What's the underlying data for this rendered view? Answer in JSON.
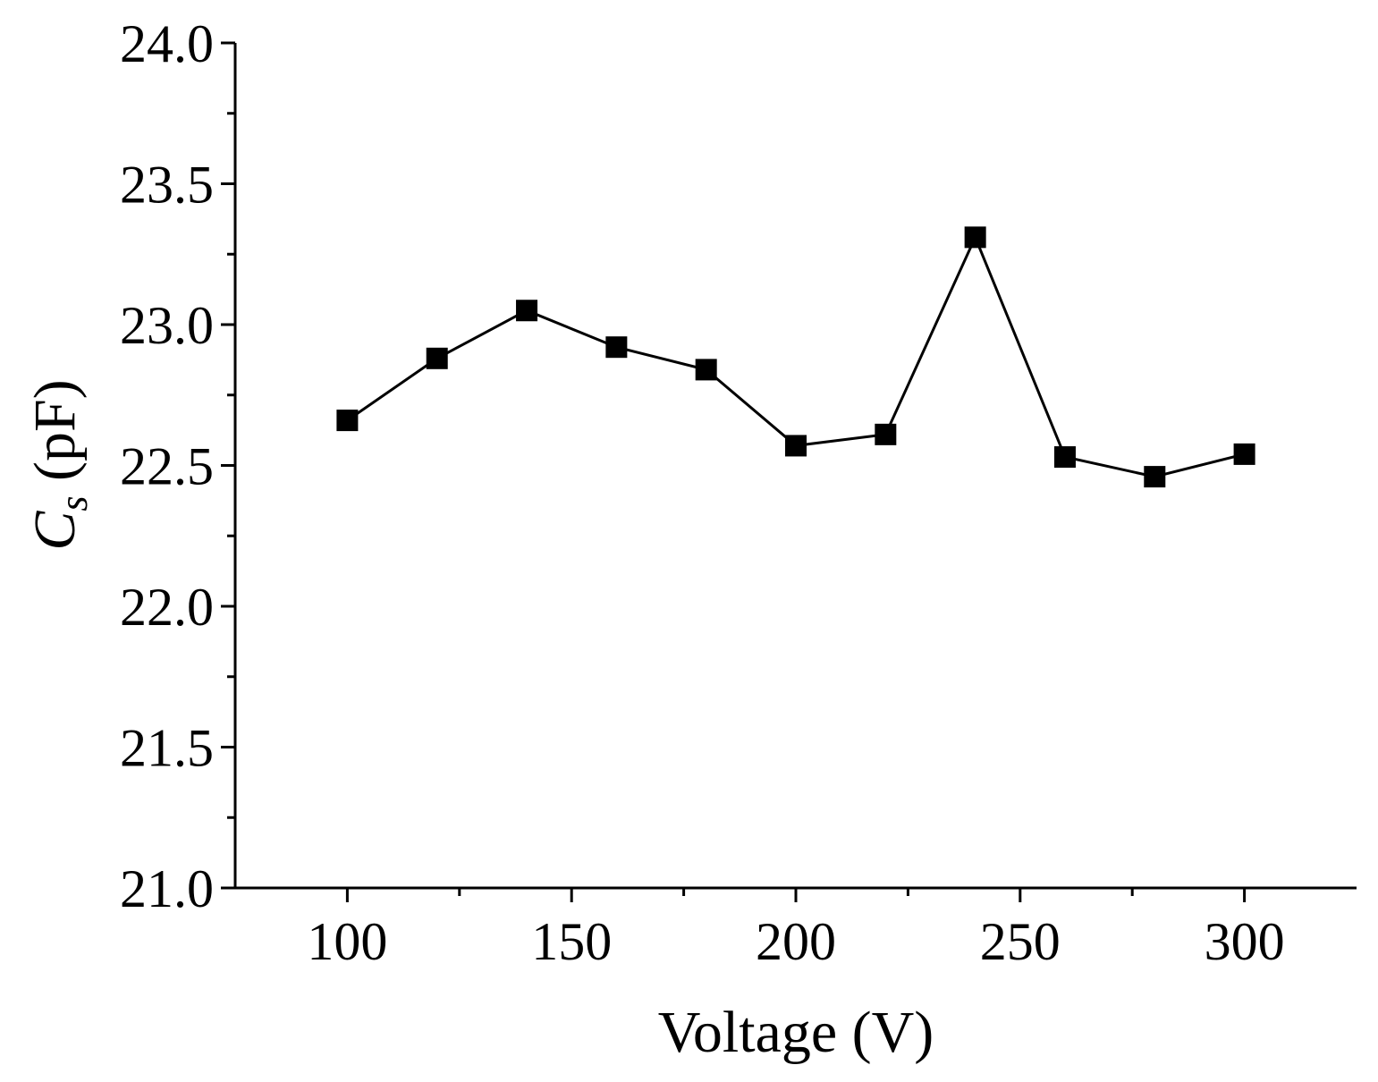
{
  "chart_data": {
    "type": "line",
    "title": "",
    "xlabel": "Voltage (V)",
    "ylabel": {
      "symbol": "C",
      "subscript": "s",
      "unit": " (pF)"
    },
    "xlim": [
      75,
      325
    ],
    "ylim": [
      21.0,
      24.0
    ],
    "x_ticks": [
      100,
      150,
      200,
      250,
      300
    ],
    "x_tick_labels": [
      "100",
      "150",
      "200",
      "250",
      "300"
    ],
    "x_minor_ticks": [
      125,
      175,
      225,
      275
    ],
    "y_ticks": [
      21.0,
      21.5,
      22.0,
      22.5,
      23.0,
      23.5,
      24.0
    ],
    "y_tick_labels": [
      "21.0",
      "21.5",
      "22.0",
      "22.5",
      "23.0",
      "23.5",
      "24.0"
    ],
    "y_minor_ticks": [
      21.25,
      21.75,
      22.25,
      22.75,
      23.25,
      23.75
    ],
    "grid": false,
    "legend": "none",
    "series": [
      {
        "name": "Cs",
        "marker": "square",
        "color": "#000000",
        "x": [
          100,
          120,
          140,
          160,
          180,
          200,
          220,
          240,
          260,
          280,
          300
        ],
        "y": [
          22.66,
          22.88,
          23.05,
          22.92,
          22.84,
          22.57,
          22.61,
          23.31,
          22.53,
          22.46,
          22.54
        ]
      }
    ]
  }
}
